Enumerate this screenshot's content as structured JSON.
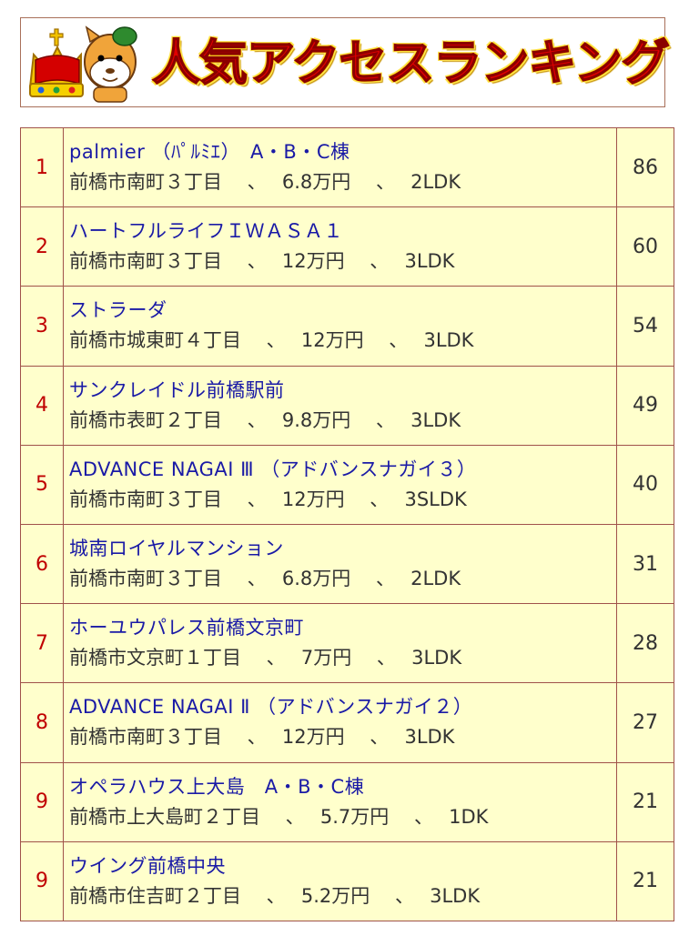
{
  "header": {
    "title": "人気アクセスランキング",
    "mascot_icon": "crown-mascot-icon"
  },
  "colors": {
    "title_red": "#e00000",
    "rank_red": "#c00000",
    "link_blue": "#1a1aa6",
    "row_bg": "#ffffcc",
    "border": "#a0524a"
  },
  "ranking": [
    {
      "rank": "1",
      "name": "palmier （ﾊﾟﾙﾐｴ）　A・B・C棟",
      "address": "前橋市南町３丁目",
      "rent": "6.8万円",
      "layout": "2LDK",
      "count": "86"
    },
    {
      "rank": "2",
      "name": "ハートフルライフＩＷＡＳＡ１",
      "address": "前橋市南町３丁目",
      "rent": "12万円",
      "layout": "3LDK",
      "count": "60"
    },
    {
      "rank": "3",
      "name": "ストラーダ",
      "address": "前橋市城東町４丁目",
      "rent": "12万円",
      "layout": "3LDK",
      "count": "54"
    },
    {
      "rank": "4",
      "name": "サンクレイドル前橋駅前",
      "address": "前橋市表町２丁目",
      "rent": "9.8万円",
      "layout": "3LDK",
      "count": "49"
    },
    {
      "rank": "5",
      "name": "ADVANCE NAGAI Ⅲ （アドバンスナガイ３）",
      "address": "前橋市南町３丁目",
      "rent": "12万円",
      "layout": "3SLDK",
      "count": "40"
    },
    {
      "rank": "6",
      "name": "城南ロイヤルマンション",
      "address": "前橋市南町３丁目",
      "rent": "6.8万円",
      "layout": "2LDK",
      "count": "31"
    },
    {
      "rank": "7",
      "name": "ホーユウパレス前橋文京町",
      "address": "前橋市文京町１丁目",
      "rent": "7万円",
      "layout": "3LDK",
      "count": "28"
    },
    {
      "rank": "8",
      "name": "ADVANCE NAGAI Ⅱ （アドバンスナガイ２）",
      "address": "前橋市南町３丁目",
      "rent": "12万円",
      "layout": "3LDK",
      "count": "27"
    },
    {
      "rank": "9",
      "name": "オペラハウス上大島　A・B・C棟",
      "address": "前橋市上大島町２丁目",
      "rent": "5.7万円",
      "layout": "1DK",
      "count": "21"
    },
    {
      "rank": "9",
      "name": "ウイング前橋中央",
      "address": "前橋市住吉町２丁目",
      "rent": "5.2万円",
      "layout": "3LDK",
      "count": "21"
    }
  ]
}
